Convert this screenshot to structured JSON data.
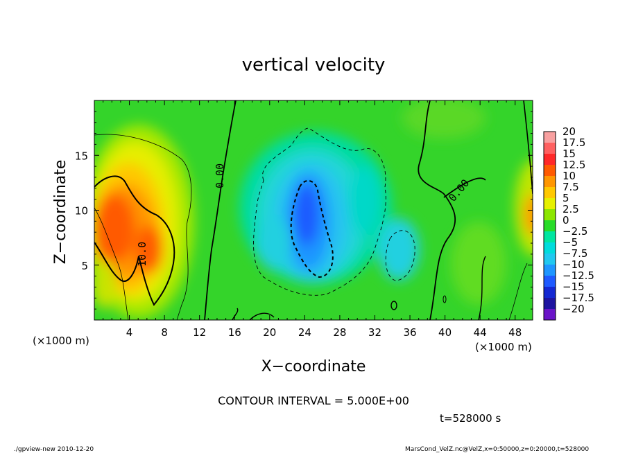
{
  "chart_data": {
    "type": "heatmap",
    "title": "vertical velocity",
    "xlabel": "X−coordinate",
    "ylabel": "Z−coordinate",
    "x_unit_left": "(×1000 m)",
    "x_unit_right": "(×1000 m)",
    "xlim": [
      0,
      50
    ],
    "ylim": [
      0,
      20
    ],
    "xticks": [
      4,
      8,
      12,
      16,
      20,
      24,
      28,
      32,
      36,
      40,
      44,
      48
    ],
    "yticks": [
      5,
      10,
      15
    ],
    "contour_interval_text": "CONTOUR INTERVAL = 5.000E+00",
    "time_text": "t=528000 s",
    "contour_labels": [
      "10.0",
      "0.00",
      "0.00"
    ],
    "colorbar": {
      "levels": [
        20,
        17.5,
        15,
        12.5,
        10,
        7.5,
        5,
        2.5,
        0,
        -2.5,
        -5,
        -7.5,
        -10,
        -12.5,
        -15,
        -17.5,
        -20
      ],
      "labels": [
        "20",
        "17.5",
        "15",
        "12.5",
        "10",
        "7.5",
        "5",
        "2.5",
        "0",
        "−2.5",
        "−5",
        "−7.5",
        "−10",
        "−12.5",
        "−15",
        "−17.5",
        "−20"
      ],
      "colors": [
        "#f8a0a0",
        "#ff6060",
        "#ff2828",
        "#ff5a00",
        "#ff9600",
        "#ffc800",
        "#e6f000",
        "#8ce600",
        "#28dc28",
        "#00e6a0",
        "#00dcdc",
        "#20c8f0",
        "#1e96ff",
        "#1e5aff",
        "#1428d2",
        "#1e14a0",
        "#6a14c8"
      ]
    }
  },
  "footer": {
    "left": "./gpview-new   2010-12-20",
    "right": "MarsCond_VelZ.nc@VelZ,x=0:50000,z=0:20000,t=528000"
  }
}
